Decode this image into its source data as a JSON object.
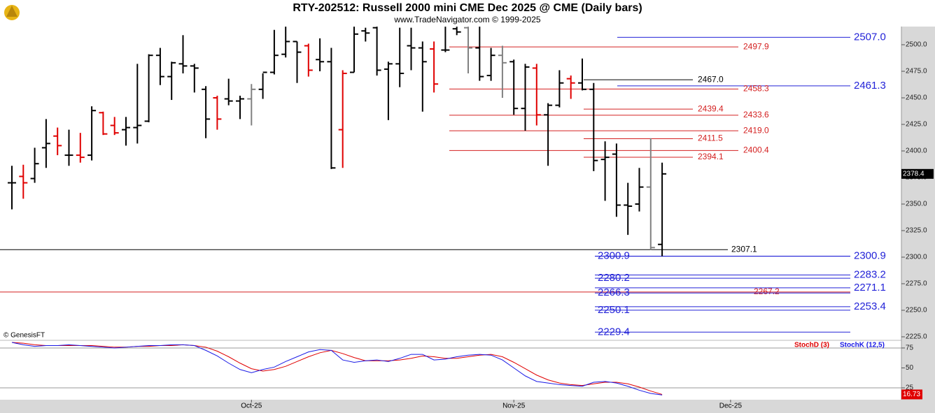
{
  "chart_data": [
    {
      "type": "ohlc",
      "title": "RTY-202512:  Russell 2000 mini CME Dec 2025 @ CME  (Daily bars)",
      "subtitle": "www.TradeNavigator.com © 1999-2025",
      "source": "© GenesisFT",
      "categories": [
        null,
        null,
        null,
        null,
        null,
        null,
        null,
        null,
        null,
        null,
        null,
        null,
        null,
        null,
        null,
        null,
        null,
        null,
        null,
        null,
        null,
        "Oct-25",
        null,
        null,
        null,
        null,
        null,
        null,
        null,
        null,
        null,
        null,
        null,
        null,
        null,
        null,
        null,
        null,
        null,
        null,
        null,
        null,
        null,
        null,
        "Nov-25",
        null,
        null,
        null,
        null,
        null,
        null,
        null,
        null,
        null,
        null,
        null,
        null,
        null,
        null,
        null,
        null,
        null,
        null,
        "Dec-25",
        null,
        null,
        null,
        null,
        null,
        null,
        null,
        null,
        null,
        null,
        null,
        null,
        null,
        null,
        null
      ],
      "open": [
        2370,
        2376,
        2374,
        2403,
        2414,
        2396,
        2396,
        2396,
        2436,
        2424,
        2420,
        2422,
        2428,
        2490,
        2470,
        2482,
        2480,
        2458,
        2450,
        2449,
        2447,
        2449,
        2458,
        2474,
        2491,
        2503,
        2499,
        2486,
        2484,
        2420,
        2474,
        2513,
        2516,
        2477,
        2482,
        2499,
        2497,
        2496,
        2495,
        2515,
        2516,
        2497,
        2471,
        2490,
        2484,
        2440,
        2478,
        2434,
        2443,
        2468,
        2464,
        2458,
        2392,
        2397,
        2349,
        2350,
        2366,
        2312,
        null,
        null,
        null,
        null,
        null,
        null,
        null,
        null,
        null,
        null,
        null,
        null,
        null,
        null,
        null,
        null,
        null,
        null,
        null,
        null,
        null
      ],
      "high": [
        2386,
        2387,
        2403,
        2430,
        2422,
        2420,
        2417,
        2442,
        2437,
        2432,
        2432,
        2482,
        2491,
        2497,
        2484,
        2509,
        2482,
        2461,
        2452,
        2468,
        2452,
        2463,
        2473,
        2514,
        2517,
        2503,
        2501,
        2506,
        2497,
        2476,
        2517,
        2516,
        2517,
        2484,
        2516,
        2516,
        2503,
        2503,
        2517,
        2517,
        2517,
        2517,
        2497,
        2499,
        2486,
        2482,
        2482,
        2445,
        2476,
        2471,
        2487,
        2464,
        2409,
        2407,
        2370,
        2384,
        2412,
        2389,
        null,
        null,
        null,
        null,
        null,
        null,
        null,
        null,
        null,
        null,
        null,
        null,
        null,
        null,
        null,
        null,
        null,
        null,
        null,
        null,
        null
      ],
      "low": [
        2345,
        2355,
        2370,
        2384,
        2396,
        2386,
        2389,
        2391,
        2415,
        2415,
        2405,
        2407,
        2427,
        2462,
        2448,
        2473,
        2455,
        2412,
        2420,
        2443,
        2430,
        2424,
        2449,
        2472,
        2488,
        2464,
        2470,
        2475,
        2383,
        2384,
        2474,
        2503,
        2471,
        2429,
        2460,
        2476,
        2437,
        2455,
        2493,
        2509,
        2473,
        2466,
        2466,
        2450,
        2434,
        2419,
        2424,
        2386,
        2441,
        2449,
        2457,
        2381,
        2353,
        2338,
        2321,
        2343,
        2307,
        2300.9,
        null,
        null,
        null,
        null,
        null,
        null,
        null,
        null,
        null,
        null,
        null,
        null,
        null,
        null,
        null,
        null,
        null,
        null,
        null,
        null,
        null
      ],
      "close": [
        2370,
        2370,
        2388,
        2407,
        2405,
        2396,
        2394,
        2438,
        2416,
        2417,
        2422,
        2424,
        2490,
        2470,
        2483,
        2480,
        2478,
        2430,
        2430,
        2447,
        2449,
        2458,
        2474,
        2490,
        2503,
        2493,
        2476,
        2484,
        2384,
        2473,
        2510,
        2511,
        2476,
        2482,
        2473,
        2497,
        2484,
        2463,
        2495,
        2512,
        2497,
        2470,
        2490,
        2483,
        2440,
        2479,
        2434,
        2443,
        2464,
        2464,
        2458,
        2391,
        2394,
        2349,
        2348,
        2366,
        2309,
        2378.4,
        null,
        null,
        null,
        null,
        null,
        null,
        null,
        null,
        null,
        null,
        null,
        null,
        null,
        null,
        null,
        null,
        null,
        null,
        null,
        null,
        null
      ],
      "bar_colors": [
        "#000000",
        "#e00000",
        "#000000",
        "#000000",
        "#e00000",
        "#000000",
        "#e00000",
        "#000000",
        "#e00000",
        "#e00000",
        "#000000",
        "#000000",
        "#000000",
        "#000000",
        "#000000",
        "#000000",
        "#000000",
        "#000000",
        "#e00000",
        "#000000",
        "#000000",
        "#808080",
        "#000000",
        "#000000",
        "#000000",
        "#000000",
        "#e00000",
        "#000000",
        "#000000",
        "#e00000",
        "#000000",
        "#000000",
        "#000000",
        "#000000",
        "#000000",
        "#000000",
        "#000000",
        "#e00000",
        "#000000",
        "#000000",
        "#808080",
        "#000000",
        "#000000",
        "#808080",
        "#000000",
        "#000000",
        "#e00000",
        "#000000",
        "#000000",
        "#e00000",
        "#000000",
        "#000000",
        "#000000",
        "#000000",
        "#000000",
        "#000000",
        "#808080",
        "#000000",
        null,
        null,
        null,
        null,
        null,
        null,
        null,
        null,
        null,
        null,
        null,
        null,
        null,
        null,
        null,
        null,
        null,
        null,
        null,
        null,
        null
      ],
      "ylim": [
        2221.7,
        2517.1
      ],
      "yticks": [
        {
          "value": 2225,
          "label": "2225.0"
        },
        {
          "value": 2250,
          "label": "2250.0"
        },
        {
          "value": 2275,
          "label": "2275.0"
        },
        {
          "value": 2300,
          "label": "2300.0"
        },
        {
          "value": 2325,
          "label": "2325.0"
        },
        {
          "value": 2350,
          "label": "2350.0"
        },
        {
          "value": 2375,
          "label": "2375.0"
        },
        {
          "value": 2400,
          "label": "2400.0"
        },
        {
          "value": 2425,
          "label": "2425.0"
        },
        {
          "value": 2450,
          "label": "2450.0"
        },
        {
          "value": 2475,
          "label": "2475.0"
        },
        {
          "value": 2500,
          "label": "2500.0"
        }
      ],
      "levels": [
        {
          "value": 2507.0,
          "label": "2507.0",
          "color": "#2323d8"
        },
        {
          "value": 2497.9,
          "label": "2497.9",
          "color": "#d42020"
        },
        {
          "value": 2467.0,
          "label": "2467.0",
          "color": "#000000"
        },
        {
          "value": 2461.3,
          "label": "2461.3",
          "color": "#2323d8"
        },
        {
          "value": 2458.3,
          "label": "2458.3",
          "color": "#d42020"
        },
        {
          "value": 2439.4,
          "label": "2439.4",
          "color": "#d42020"
        },
        {
          "value": 2433.6,
          "label": "2433.6",
          "color": "#d42020"
        },
        {
          "value": 2419.0,
          "label": "2419.0",
          "color": "#d42020"
        },
        {
          "value": 2411.5,
          "label": "2411.5",
          "color": "#d42020"
        },
        {
          "value": 2400.4,
          "label": "2400.4",
          "color": "#d42020"
        },
        {
          "value": 2394.1,
          "label": "2394.1",
          "color": "#d42020"
        },
        {
          "value": 2307.1,
          "label": "2307.1",
          "color": "#000000"
        },
        {
          "value": 2300.9,
          "label": "2300.9",
          "color": "#2323d8"
        },
        {
          "value": 2300.9,
          "label": "2300.9",
          "color": "#2323d8"
        },
        {
          "value": 2283.2,
          "label": "2283.2",
          "color": "#2323d8"
        },
        {
          "value": 2280.2,
          "label": "2280.2",
          "color": "#2323d8"
        },
        {
          "value": 2271.1,
          "label": "2271.1",
          "color": "#2323d8"
        },
        {
          "value": 2267.2,
          "label": "2267.2",
          "color": "#d42020"
        },
        {
          "value": 2266.3,
          "label": "2266.3",
          "color": "#2323d8"
        },
        {
          "value": 2253.4,
          "label": "2253.4",
          "color": "#2323d8"
        },
        {
          "value": 2250.1,
          "label": "2250.1",
          "color": "#2323d8"
        },
        {
          "value": 2229.4,
          "label": "2229.4",
          "color": "#2323d8"
        }
      ]
    },
    {
      "type": "line",
      "ylim": [
        10.1,
        84.6
      ],
      "yticks": [
        25,
        50,
        75
      ],
      "hlines": [
        25,
        75
      ],
      "series": [
        {
          "name": "StochD (3)",
          "color": "#e00000",
          "values": [
            82,
            81,
            79,
            78,
            78,
            78,
            78,
            78,
            77,
            76,
            76,
            77,
            77,
            78,
            78,
            79,
            78,
            76,
            71,
            64,
            56,
            49,
            46,
            48,
            52,
            58,
            64,
            69,
            72,
            68,
            63,
            59,
            59,
            59,
            60,
            62,
            65,
            64,
            62,
            62,
            64,
            66,
            67,
            64,
            57,
            49,
            41,
            35,
            31,
            29,
            28,
            30,
            32,
            32,
            30,
            26,
            21,
            16.73
          ]
        },
        {
          "name": "StochK (12,5)",
          "color": "#1a1ae6",
          "values": [
            82,
            79,
            77,
            78,
            78,
            79,
            78,
            77,
            76,
            75,
            76,
            77,
            78,
            78,
            79,
            79,
            78,
            72,
            65,
            56,
            48,
            44,
            48,
            51,
            58,
            64,
            70,
            73,
            72,
            60,
            57,
            59,
            60,
            58,
            62,
            67,
            67,
            60,
            61,
            64,
            66,
            67,
            66,
            60,
            50,
            40,
            33,
            31,
            29,
            28,
            27,
            32,
            33,
            31,
            27,
            22,
            18,
            16
          ]
        }
      ]
    }
  ]
}
